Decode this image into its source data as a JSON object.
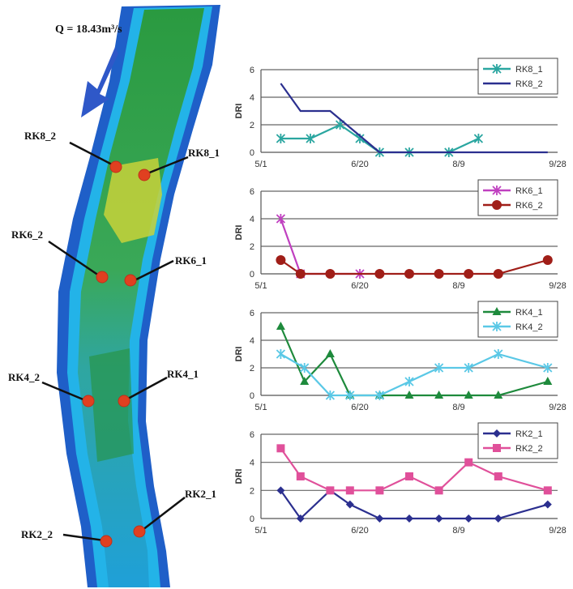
{
  "map": {
    "flow_label": "Q = 18.43m³/s",
    "site_labels": [
      "RK8_2",
      "RK8_1",
      "RK6_2",
      "RK6_1",
      "RK4_2",
      "RK4_1",
      "RK2_1",
      "RK2_2"
    ]
  },
  "chart_data": [
    {
      "type": "line",
      "ylabel": "DRI",
      "ylim": [
        0,
        6
      ],
      "yticks": [
        0,
        2,
        4,
        6
      ],
      "x_tick_labels": [
        "5/1",
        "6/20",
        "8/9",
        "9/28"
      ],
      "x_tick_days": [
        0,
        50,
        100,
        150
      ],
      "grid": true,
      "legend_position": "top-right",
      "series": [
        {
          "name": "RK8_1",
          "color": "#2aa6a0",
          "marker": "asterisk",
          "x": [
            10,
            25,
            40,
            50,
            60,
            75,
            95,
            110
          ],
          "y": [
            1,
            1,
            2,
            1,
            0,
            0,
            0,
            1
          ]
        },
        {
          "name": "RK8_2",
          "color": "#2b2f8f",
          "marker": "none",
          "x": [
            10,
            20,
            35,
            60,
            80,
            100,
            120,
            145
          ],
          "y": [
            5,
            3,
            3,
            0,
            0,
            0,
            0,
            0
          ]
        }
      ]
    },
    {
      "type": "line",
      "ylabel": "DRI",
      "ylim": [
        0,
        6
      ],
      "yticks": [
        0,
        2,
        4,
        6
      ],
      "x_tick_labels": [
        "5/1",
        "6/20",
        "8/9",
        "9/28"
      ],
      "x_tick_days": [
        0,
        50,
        100,
        150
      ],
      "grid": true,
      "legend_position": "top-right",
      "series": [
        {
          "name": "RK6_1",
          "color": "#c040c0",
          "marker": "asterisk",
          "x": [
            10,
            20,
            50
          ],
          "y": [
            4,
            0,
            0
          ]
        },
        {
          "name": "RK6_2",
          "color": "#a01e18",
          "marker": "circle",
          "x": [
            10,
            20,
            35,
            60,
            75,
            90,
            105,
            120,
            145
          ],
          "y": [
            1,
            0,
            0,
            0,
            0,
            0,
            0,
            0,
            1
          ]
        }
      ]
    },
    {
      "type": "line",
      "ylabel": "DRI",
      "ylim": [
        0,
        6
      ],
      "yticks": [
        0,
        2,
        4,
        6
      ],
      "x_tick_labels": [
        "5/1",
        "6/20",
        "8/9",
        "9/28"
      ],
      "x_tick_days": [
        0,
        50,
        100,
        150
      ],
      "grid": true,
      "legend_position": "top-right",
      "series": [
        {
          "name": "RK4_1",
          "color": "#1e8a3c",
          "marker": "triangle",
          "x": [
            10,
            22,
            35,
            45,
            60,
            75,
            90,
            105,
            120,
            145
          ],
          "y": [
            5,
            1,
            3,
            0,
            0,
            0,
            0,
            0,
            0,
            1
          ]
        },
        {
          "name": "RK4_2",
          "color": "#5ac8e6",
          "marker": "asterisk",
          "x": [
            10,
            22,
            35,
            45,
            60,
            75,
            90,
            105,
            120,
            145
          ],
          "y": [
            3,
            2,
            0,
            0,
            0,
            1,
            2,
            2,
            3,
            2
          ]
        }
      ]
    },
    {
      "type": "line",
      "ylabel": "DRI",
      "ylim": [
        0,
        6
      ],
      "yticks": [
        0,
        2,
        4,
        6
      ],
      "x_tick_labels": [
        "5/1",
        "6/20",
        "8/9",
        "9/28"
      ],
      "x_tick_days": [
        0,
        50,
        100,
        150
      ],
      "grid": true,
      "legend_position": "top-right",
      "series": [
        {
          "name": "RK2_1",
          "color": "#2b2f8f",
          "marker": "diamond",
          "x": [
            10,
            20,
            35,
            45,
            60,
            75,
            90,
            105,
            120,
            145
          ],
          "y": [
            2,
            0,
            2,
            1,
            0,
            0,
            0,
            0,
            0,
            1
          ]
        },
        {
          "name": "RK2_2",
          "color": "#e0509a",
          "marker": "square",
          "x": [
            10,
            20,
            35,
            45,
            60,
            75,
            90,
            105,
            120,
            145
          ],
          "y": [
            5,
            3,
            2,
            2,
            2,
            3,
            2,
            4,
            3,
            2
          ]
        }
      ]
    }
  ]
}
